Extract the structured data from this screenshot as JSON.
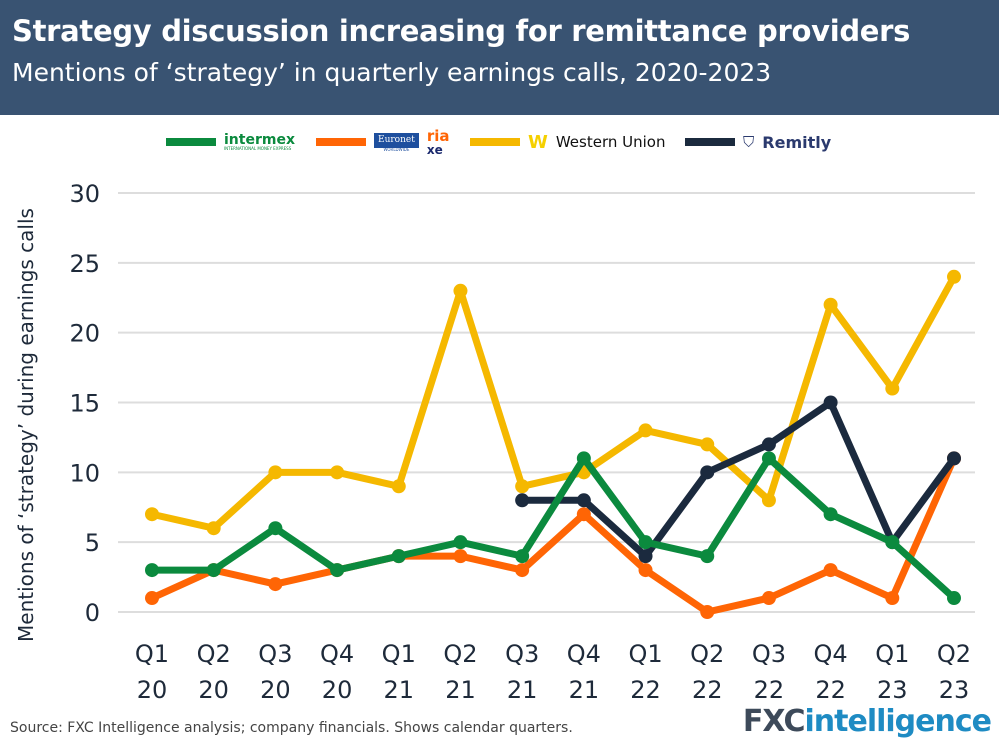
{
  "header": {
    "title": "Strategy discussion increasing for remittance providers",
    "subtitle": "Mentions of ‘strategy’ in quarterly earnings calls, 2020-2023"
  },
  "legend": [
    {
      "logo_text": "intermex",
      "logo_subtext": "INTERNATIONAL MONEY EXPRESS",
      "color": "#0b8a3e"
    },
    {
      "logo_text": "Euronet",
      "logo_subtext": "WORLDWIDE",
      "logo_text2": "ria",
      "logo_text3": "xe",
      "color": "#ff6505"
    },
    {
      "logo_text": "Western Union",
      "color": "#f5b800"
    },
    {
      "logo_text": "Remitly",
      "color": "#1b2a3e"
    }
  ],
  "footer": {
    "source": "Source: FXC Intelligence analysis; company financials. Shows calendar quarters.",
    "brand_a": "FXC",
    "brand_b": "intelligence"
  },
  "chart_data": {
    "type": "line",
    "title": "Strategy discussion increasing for remittance providers",
    "subtitle": "Mentions of ‘strategy’ in quarterly earnings calls, 2020-2023",
    "ylabel": "Mentions of ‘strategy’ during earnings calls",
    "xlabel": "",
    "ylim": [
      0,
      30
    ],
    "yticks": [
      0,
      5,
      10,
      15,
      20,
      25,
      30
    ],
    "grid": true,
    "legend_position": "top",
    "categories": [
      [
        "Q1",
        "20"
      ],
      [
        "Q2",
        "20"
      ],
      [
        "Q3",
        "20"
      ],
      [
        "Q4",
        "20"
      ],
      [
        "Q1",
        "21"
      ],
      [
        "Q2",
        "21"
      ],
      [
        "Q3",
        "21"
      ],
      [
        "Q4",
        "21"
      ],
      [
        "Q1",
        "22"
      ],
      [
        "Q2",
        "22"
      ],
      [
        "Q3",
        "22"
      ],
      [
        "Q4",
        "22"
      ],
      [
        "Q1",
        "23"
      ],
      [
        "Q2",
        "23"
      ]
    ],
    "series": [
      {
        "name": "Western Union",
        "color": "#f5b800",
        "values": [
          7,
          6,
          10,
          10,
          9,
          23,
          9,
          10,
          13,
          12,
          8,
          22,
          16,
          24
        ]
      },
      {
        "name": "Euronet (Ria, Xe)",
        "color": "#ff6505",
        "values": [
          1,
          3,
          2,
          3,
          4,
          4,
          3,
          7,
          3,
          0,
          1,
          3,
          1,
          11
        ]
      },
      {
        "name": "Remitly",
        "color": "#1b2a3e",
        "values": [
          null,
          null,
          null,
          null,
          null,
          null,
          8,
          8,
          4,
          10,
          12,
          15,
          5,
          11
        ]
      },
      {
        "name": "Intermex",
        "color": "#0b8a3e",
        "values": [
          3,
          3,
          6,
          3,
          4,
          5,
          4,
          11,
          5,
          4,
          11,
          7,
          5,
          1
        ]
      }
    ]
  }
}
